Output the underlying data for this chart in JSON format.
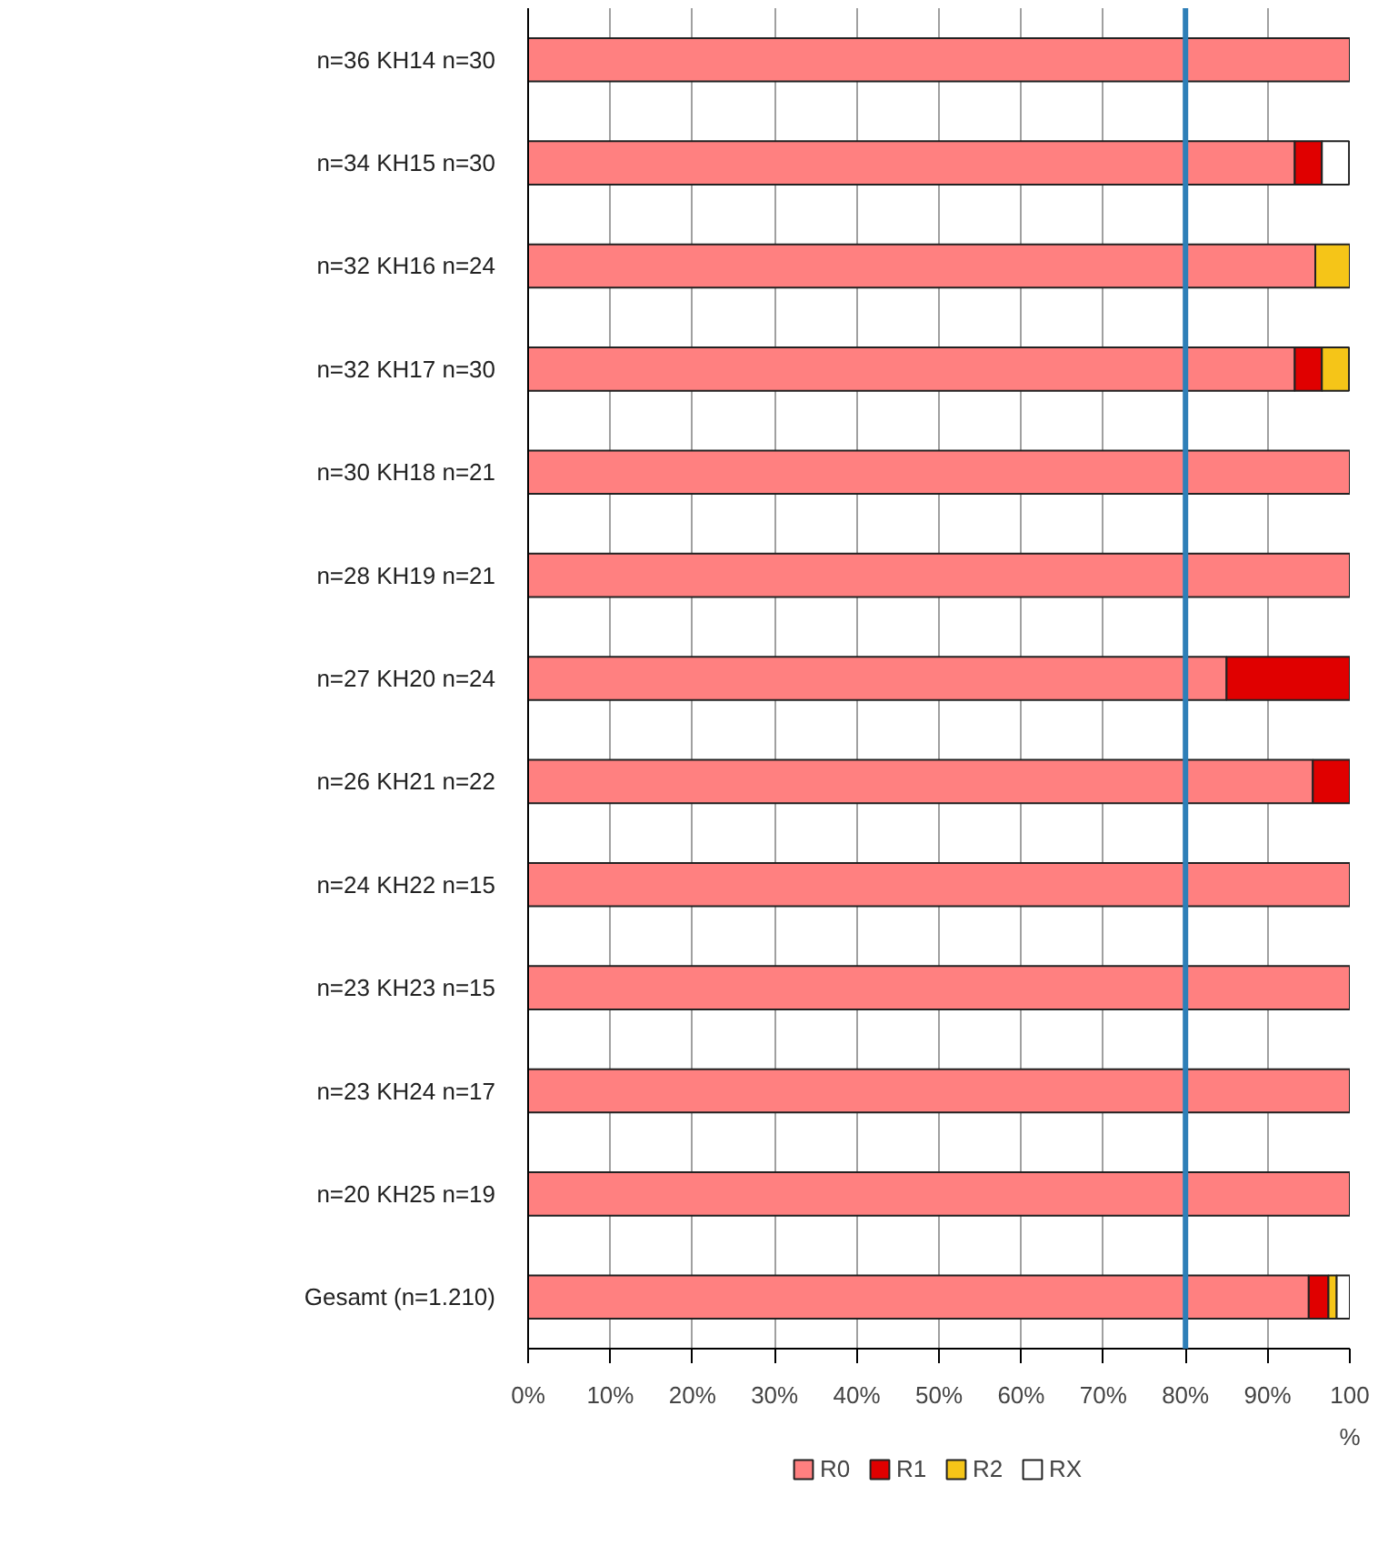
{
  "chart_data": {
    "type": "bar",
    "orientation": "horizontal",
    "stacked": true,
    "xlabel": "%",
    "categories": [
      "n=36 KH14 n=30",
      "n=34 KH15 n=30",
      "n=32 KH16 n=24",
      "n=32 KH17 n=30",
      "n=30 KH18 n=21",
      "n=28 KH19 n=21",
      "n=27 KH20 n=24",
      "n=26 KH21 n=22",
      "n=24 KH22 n=15",
      "n=23 KH23 n=15",
      "n=23 KH24 n=17",
      "n=20 KH25 n=19",
      "Gesamt (n=1.210)"
    ],
    "series": [
      {
        "name": "R0",
        "color": "#ff8080",
        "values": [
          100,
          93.3,
          95.8,
          93.3,
          100,
          100,
          85,
          95.5,
          100,
          100,
          100,
          100,
          95
        ]
      },
      {
        "name": "R1",
        "color": "#e00000",
        "values": [
          0,
          3.3,
          0,
          3.3,
          0,
          0,
          15,
          4.5,
          0,
          0,
          0,
          0,
          2.4
        ]
      },
      {
        "name": "R2",
        "color": "#f5c518",
        "values": [
          0,
          0,
          4.2,
          3.3,
          0,
          0,
          0,
          0,
          0,
          0,
          0,
          0,
          1
        ]
      },
      {
        "name": "RX",
        "color": "#ffffff",
        "values": [
          0,
          3.3,
          0,
          0,
          0,
          0,
          0,
          0,
          0,
          0,
          0,
          0,
          1.6
        ]
      }
    ],
    "xlim": [
      0,
      100
    ],
    "xticks": [
      {
        "value": 0,
        "label": "0%"
      },
      {
        "value": 10,
        "label": "10%"
      },
      {
        "value": 20,
        "label": "20%"
      },
      {
        "value": 30,
        "label": "30%"
      },
      {
        "value": 40,
        "label": "40%"
      },
      {
        "value": 50,
        "label": "50%"
      },
      {
        "value": 60,
        "label": "60%"
      },
      {
        "value": 70,
        "label": "70%"
      },
      {
        "value": 80,
        "label": "80%"
      },
      {
        "value": 90,
        "label": "90%"
      },
      100
    ],
    "ref_lines": [
      {
        "axis": "x",
        "value": 80,
        "color": "#2e7fb8"
      }
    ],
    "grid": "x",
    "legend": "bottom"
  }
}
